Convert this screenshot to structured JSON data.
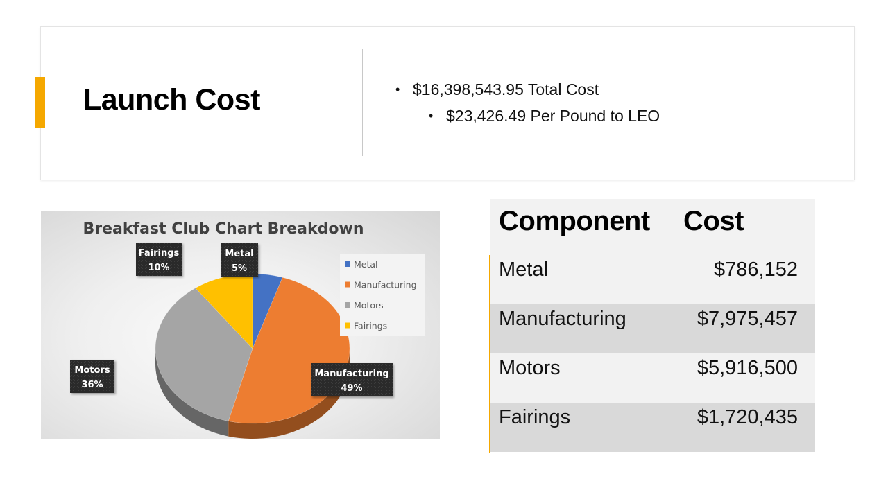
{
  "slide": {
    "title": "Launch Cost",
    "bullets": [
      "$16,398,543.95 Total Cost",
      "$23,426.49 Per Pound to LEO"
    ],
    "accent_color": "#f5a800"
  },
  "table": {
    "headers": [
      "Component",
      "Cost"
    ],
    "rows": [
      {
        "component": "Metal",
        "cost": "$786,152"
      },
      {
        "component": "Manufacturing",
        "cost": "$7,975,457"
      },
      {
        "component": "Motors",
        "cost": "$5,916,500"
      },
      {
        "component": "Fairings",
        "cost": "$1,720,435"
      }
    ]
  },
  "chart_data": {
    "type": "pie",
    "title": "Breakfast Club Chart Breakdown",
    "legend_position": "right",
    "categories": [
      "Metal",
      "Manufacturing",
      "Motors",
      "Fairings"
    ],
    "values": [
      5,
      49,
      36,
      10
    ],
    "labels": [
      {
        "name": "Metal",
        "percent": "5%"
      },
      {
        "name": "Manufacturing",
        "percent": "49%"
      },
      {
        "name": "Motors",
        "percent": "36%"
      },
      {
        "name": "Fairings",
        "percent": "10%"
      }
    ],
    "colors": [
      "#4472c4",
      "#ed7d31",
      "#a5a5a5",
      "#ffc000"
    ]
  }
}
